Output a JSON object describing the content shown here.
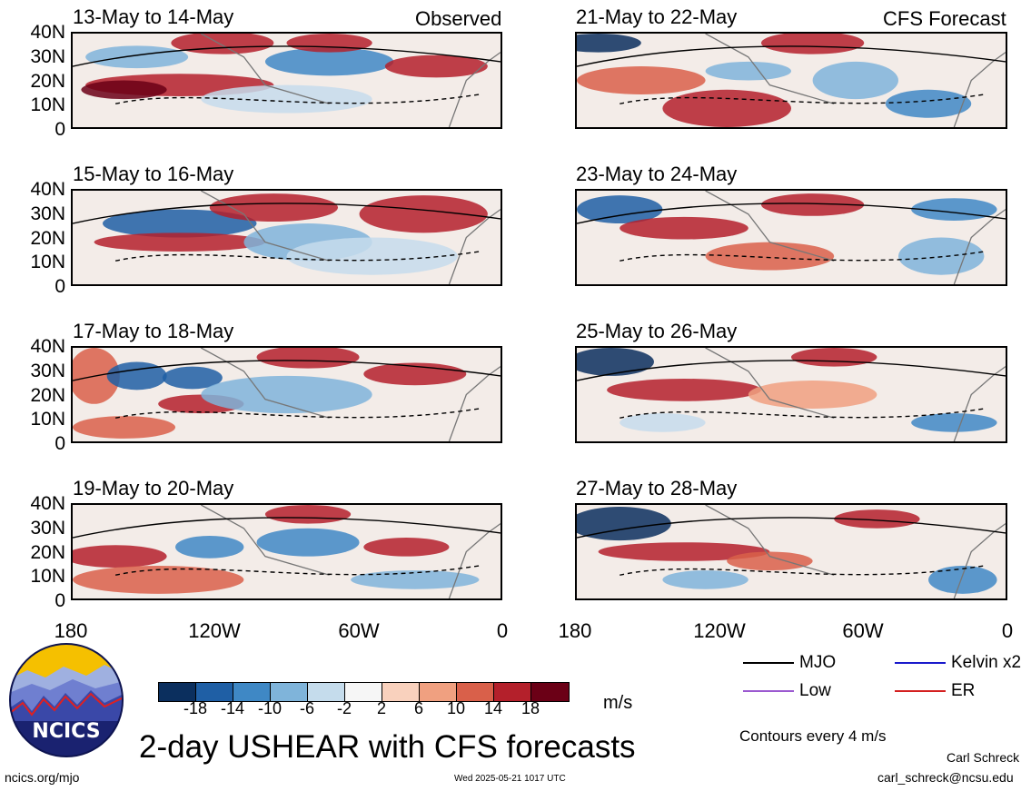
{
  "chart_data": {
    "type": "heatmap",
    "title": "2-day USHEAR with CFS forecasts",
    "units": "m/s",
    "colorbar": {
      "ticks": [
        "-18",
        "-14",
        "-10",
        "-6",
        "-2",
        "2",
        "6",
        "10",
        "14",
        "18"
      ],
      "colors": [
        "#0b2f5e",
        "#1f5fa5",
        "#3f88c5",
        "#7fb4da",
        "#c5dcec",
        "#f6f6f6",
        "#f9d1bd",
        "#f0a080",
        "#d9604a",
        "#b4202b",
        "#6b0016"
      ]
    },
    "x_ticks": [
      "180",
      "120W",
      "60W",
      "0"
    ],
    "y_ticks": [
      "40N",
      "30N",
      "20N",
      "10N",
      "0"
    ],
    "xlim": [
      -180,
      0
    ],
    "ylim": [
      0,
      40
    ],
    "panels": [
      {
        "label": "13-May to 14-May",
        "tag": "Observed"
      },
      {
        "label": "15-May to 16-May",
        "tag": ""
      },
      {
        "label": "17-May to 18-May",
        "tag": ""
      },
      {
        "label": "19-May to 20-May",
        "tag": ""
      },
      {
        "label": "21-May to 22-May",
        "tag": "CFS Forecast"
      },
      {
        "label": "23-May to 24-May",
        "tag": ""
      },
      {
        "label": "25-May to 26-May",
        "tag": ""
      },
      {
        "label": "27-May to 28-May",
        "tag": ""
      }
    ],
    "contour_legend": [
      {
        "name": "MJO",
        "color": "#000000"
      },
      {
        "name": "Kelvin x2",
        "color": "#1a1acc"
      },
      {
        "name": "Low",
        "color": "#9b59d0"
      },
      {
        "name": "ER",
        "color": "#d42020"
      }
    ],
    "contour_note": "Contours every 4 m/s"
  },
  "footer": {
    "site": "ncics.org/mjo",
    "timestamp": "Wed 2025-05-21 1017 UTC",
    "author": "Carl Schreck",
    "email": "carl_schreck@ncsu.edu",
    "logo_text": "NCICS"
  }
}
